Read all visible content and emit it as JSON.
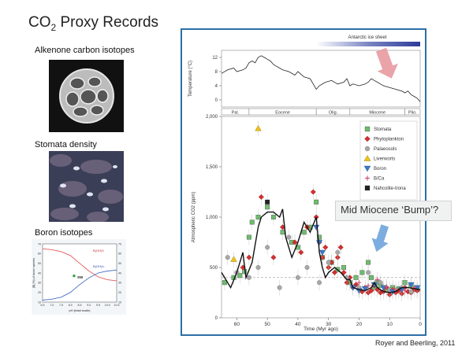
{
  "slide": {
    "title_prefix": "CO",
    "title_sub": "2",
    "title_suffix": " Proxy Records",
    "labels": {
      "alkenone": "Alkenone carbon isotopes",
      "stomata": "Stomata density",
      "boron": "Boron isotopes"
    },
    "credit": "Royer and Beerling, 2011",
    "callout": "Mid Miocene ‘Bump’?"
  },
  "boron_inset": {
    "ylabel": "[B] (%) of boron species",
    "xlabel": "pH (total scale)",
    "sw_label": "SW",
    "curve_top_label": "B(OH)3",
    "curve_bottom_label": "B(OH)4-",
    "x_ticks": [
      "6.5",
      "7.0",
      "7.5",
      "8.0",
      "8.5",
      "9.0",
      "9.5",
      "10.0",
      "10.5"
    ],
    "y_ticks_left": [
      "10",
      "20",
      "30",
      "40",
      "50",
      "60",
      "70"
    ],
    "y_ticks_right": [
      "10",
      "20",
      "30",
      "40",
      "50",
      "60",
      "70"
    ]
  },
  "colors": {
    "frame": "#2c6fa6",
    "stomata": "#6dbb6d",
    "phytoplankton": "#d32f2f",
    "palaeosols": "#a8a8a8",
    "liverworts": "#f0c419",
    "boron": "#3c78c8",
    "bca": "#d45577",
    "nahcolite": "#222222",
    "arrow_pink": "#e89aa0",
    "arrow_blue": "#6fa4dc"
  },
  "chart_data": [
    {
      "type": "line",
      "ylabel": "Temperature (°C)",
      "ylim": [
        -2,
        14
      ],
      "y_ticks": [
        0,
        4,
        8,
        12
      ],
      "x_reversed": true,
      "xlim": [
        65,
        0
      ],
      "annotation": "Antarctic ice sheet",
      "annotation_span_myr": [
        34,
        0
      ],
      "epochs": [
        {
          "name": "Pal.",
          "start": 65,
          "end": 56
        },
        {
          "name": "Eocene",
          "start": 56,
          "end": 34
        },
        {
          "name": "Olig.",
          "start": 34,
          "end": 23
        },
        {
          "name": "Miocene",
          "start": 23,
          "end": 5
        },
        {
          "name": "Plio.",
          "start": 5,
          "end": 0
        }
      ],
      "series": [
        {
          "x": [
            65,
            63,
            61,
            60,
            58,
            57,
            56,
            55,
            54,
            53,
            52,
            51,
            50,
            49,
            48,
            47,
            46,
            45,
            43,
            41,
            40,
            38,
            36,
            34,
            33,
            31,
            29,
            27,
            25,
            24,
            23,
            22,
            20,
            18,
            17,
            16,
            15,
            14,
            13,
            12,
            10,
            8,
            6,
            5,
            4,
            3,
            2,
            1,
            0
          ],
          "values": [
            7.5,
            8.5,
            9,
            8,
            8.5,
            9,
            10.5,
            11,
            10.5,
            12,
            12.5,
            12,
            11.5,
            11,
            10,
            9.5,
            9,
            8.5,
            8,
            7,
            8,
            6.5,
            6,
            3,
            4,
            5,
            5.5,
            4.5,
            5,
            6,
            4,
            4.5,
            4,
            4.5,
            5,
            6,
            5.5,
            5,
            4.5,
            4,
            3.5,
            3,
            2.5,
            2,
            2.5,
            1.5,
            1,
            0.5,
            -0.5
          ]
        }
      ]
    },
    {
      "type": "scatter",
      "xlabel": "Time (Myr ago)",
      "ylabel": "Atmospheric CO2 (ppm)",
      "xlim": [
        65,
        0
      ],
      "x_reversed": true,
      "x_ticks": [
        60,
        50,
        40,
        30,
        20,
        10,
        0
      ],
      "ylim": [
        0,
        2000
      ],
      "y_ticks": [
        0,
        500,
        1000,
        1500,
        2000
      ],
      "y_tick_labels": [
        "0",
        "500",
        "1,000",
        "1,500",
        "2,000"
      ],
      "legend_position": "top-right",
      "reference_line_ppm": 400,
      "smooth_curve": {
        "x": [
          65,
          62,
          60,
          58,
          57,
          55,
          53,
          52,
          50,
          48,
          46,
          45,
          44,
          42,
          40,
          38,
          36,
          34,
          33,
          32,
          31,
          30,
          28,
          26,
          24,
          23,
          22,
          20,
          18,
          16,
          15,
          14,
          12,
          10,
          8,
          6,
          4,
          2,
          0
        ],
        "values": [
          450,
          300,
          450,
          650,
          400,
          550,
          900,
          1000,
          1050,
          1050,
          1000,
          1080,
          800,
          600,
          750,
          950,
          850,
          1000,
          650,
          500,
          400,
          450,
          500,
          450,
          380,
          380,
          300,
          280,
          270,
          300,
          350,
          300,
          260,
          250,
          260,
          300,
          300,
          290,
          280
        ]
      },
      "series": [
        {
          "name": "Stomata",
          "marker": "square",
          "x": [
            64,
            61,
            59,
            57.5,
            56,
            55,
            53,
            50,
            48,
            45,
            42,
            40,
            38,
            36,
            34,
            33,
            32,
            29,
            27,
            25,
            23,
            21,
            19,
            17,
            16,
            15,
            14,
            13,
            11,
            9,
            7,
            5,
            3,
            1
          ],
          "values": [
            350,
            400,
            420,
            460,
            800,
            950,
            1000,
            1100,
            1000,
            850,
            750,
            700,
            850,
            900,
            1150,
            800,
            600,
            550,
            480,
            500,
            350,
            400,
            450,
            550,
            400,
            300,
            350,
            320,
            280,
            300,
            290,
            350,
            320,
            280
          ]
        },
        {
          "name": "Phytoplankton",
          "marker": "diamond",
          "x": [
            58,
            56,
            52,
            48,
            45,
            41,
            39,
            37,
            35,
            34,
            33,
            32,
            31,
            30,
            29,
            28,
            27,
            26,
            25,
            24,
            23,
            22,
            21,
            20,
            19,
            18,
            17,
            16,
            15,
            14,
            13,
            12,
            11,
            10,
            9,
            8,
            7,
            6,
            5,
            4,
            3,
            2,
            1
          ],
          "values": [
            500,
            600,
            1200,
            600,
            900,
            750,
            650,
            900,
            1250,
            1000,
            750,
            600,
            700,
            500,
            550,
            450,
            600,
            700,
            450,
            350,
            400,
            300,
            330,
            280,
            260,
            300,
            250,
            270,
            320,
            280,
            250,
            260,
            300,
            230,
            280,
            250,
            270,
            240,
            300,
            260,
            250,
            280,
            270
          ]
        },
        {
          "name": "Palaeosols",
          "marker": "circle",
          "x": [
            63,
            60,
            56,
            53,
            50,
            46,
            43,
            40,
            37,
            33,
            30,
            27,
            24,
            20,
            17,
            13,
            10,
            6,
            3
          ],
          "values": [
            600,
            450,
            400,
            500,
            700,
            300,
            800,
            400,
            500,
            350,
            550,
            650,
            400,
            300,
            450,
            350,
            280,
            300,
            260
          ]
        },
        {
          "name": "Liverworts",
          "marker": "triangle-up",
          "x": [
            61,
            53
          ],
          "values": [
            580,
            1880
          ]
        },
        {
          "name": "Boron",
          "marker": "triangle-down",
          "x": [
            34,
            33,
            32,
            22,
            20,
            18,
            15,
            12,
            9,
            6,
            3,
            1
          ],
          "values": [
            900,
            750,
            650,
            300,
            270,
            290,
            330,
            300,
            260,
            280,
            330,
            300
          ]
        },
        {
          "name": "B/Ca",
          "marker": "plus",
          "x": [
            20,
            17,
            14,
            11,
            8,
            5,
            2
          ],
          "values": [
            350,
            320,
            380,
            310,
            280,
            270,
            300
          ]
        },
        {
          "name": "Nahcolite-trona",
          "marker": "square-filled",
          "x": [
            50
          ],
          "values": [
            1150
          ]
        }
      ]
    }
  ],
  "boron_chart": {
    "type": "line",
    "x": [
      6.5,
      7.0,
      7.5,
      8.0,
      8.5,
      9.0,
      9.5,
      10.0,
      10.5
    ],
    "series": [
      {
        "name": "B(OH)3",
        "values": [
          65,
          64,
          62,
          58,
          50,
          42,
          36,
          33,
          32
        ]
      },
      {
        "name": "B(OH)4-",
        "values": [
          12,
          13,
          15,
          20,
          28,
          35,
          40,
          42,
          43
        ]
      }
    ],
    "sw_point": [
      8.2,
      37
    ]
  }
}
